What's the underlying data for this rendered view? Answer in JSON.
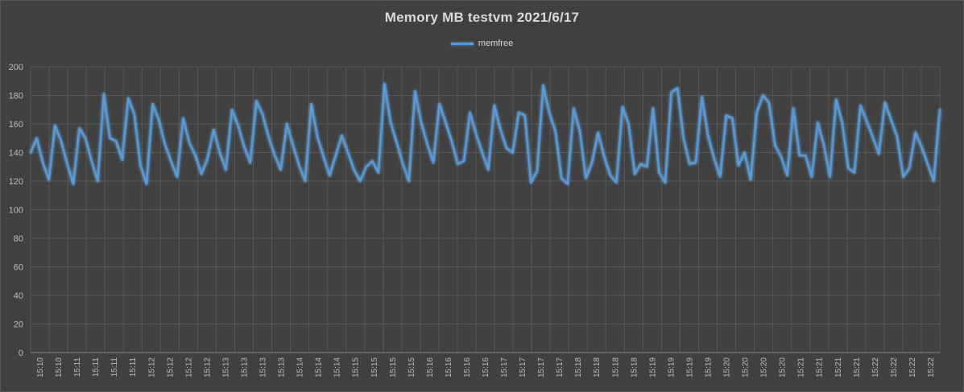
{
  "chart_data": {
    "type": "line",
    "title": "Memory MB testvm  2021/6/17",
    "xlabel": "",
    "ylabel": "",
    "ylim": [
      0,
      200
    ],
    "yticks": [
      0,
      20,
      40,
      60,
      80,
      100,
      120,
      140,
      160,
      180,
      200
    ],
    "grid": true,
    "legend_position": "top-center",
    "x_tick_labels": [
      "15:10",
      "15:10",
      "15:11",
      "15:11",
      "15:11",
      "15:11",
      "15:12",
      "15:12",
      "15:12",
      "15:12",
      "15:13",
      "15:13",
      "15:13",
      "15:13",
      "15:14",
      "15:14",
      "15:14",
      "15:15",
      "15:15",
      "15:15",
      "15:15",
      "15:16",
      "15:16",
      "15:16",
      "15:16",
      "15:17",
      "15:17",
      "15:17",
      "15:17",
      "15:18",
      "15:18",
      "15:18",
      "15:18",
      "15:19",
      "15:19",
      "15:19",
      "15:19",
      "15:20",
      "15:20",
      "15:20",
      "15:20",
      "15:21",
      "15:21",
      "15:21",
      "15:21",
      "15:22",
      "15:22",
      "15:22",
      "15:22"
    ],
    "series": [
      {
        "name": "memfree",
        "color": "#5b9bd5",
        "values": [
          140,
          150,
          133,
          121,
          159,
          148,
          132,
          118,
          157,
          150,
          134,
          120,
          181,
          150,
          148,
          135,
          178,
          167,
          131,
          118,
          174,
          163,
          146,
          134,
          123,
          164,
          147,
          138,
          125,
          136,
          156,
          140,
          128,
          170,
          159,
          144,
          133,
          176,
          167,
          151,
          138,
          128,
          160,
          145,
          131,
          120,
          174,
          151,
          137,
          124,
          138,
          152,
          140,
          128,
          120,
          130,
          134,
          126,
          188,
          161,
          147,
          132,
          120,
          183,
          161,
          146,
          133,
          174,
          161,
          148,
          132,
          134,
          168,
          153,
          140,
          128,
          173,
          156,
          143,
          140,
          168,
          166,
          119,
          127,
          187,
          168,
          155,
          122,
          118,
          171,
          155,
          122,
          133,
          154,
          137,
          124,
          119,
          172,
          160,
          125,
          132,
          130,
          171,
          126,
          119,
          182,
          185,
          150,
          132,
          133,
          179,
          152,
          136,
          123,
          166,
          164,
          131,
          140,
          121,
          168,
          180,
          175,
          145,
          137,
          124,
          171,
          138,
          138,
          123,
          161,
          145,
          123,
          177,
          161,
          129,
          126,
          173,
          162,
          151,
          139,
          175,
          163,
          151,
          123,
          129,
          154,
          144,
          132,
          120,
          170
        ]
      }
    ]
  }
}
